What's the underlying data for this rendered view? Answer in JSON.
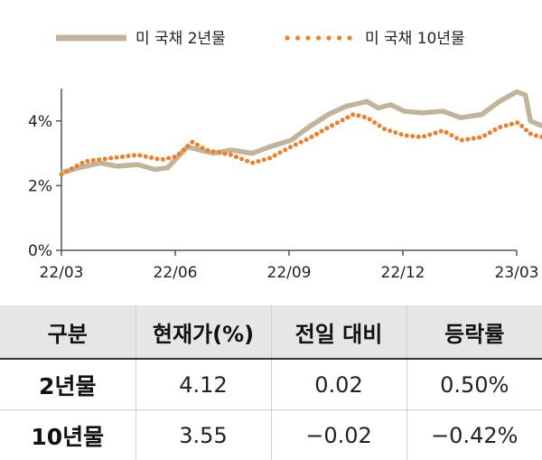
{
  "legend": {
    "series1": "미 국채 2년물",
    "series2": "미 국채 10년물"
  },
  "colors": {
    "series1": "#c2b49a",
    "series2": "#f07f2a"
  },
  "table": {
    "headers": [
      "구분",
      "현재가(%)",
      "전일 대비",
      "등락률"
    ],
    "rows": [
      [
        "2년물",
        "4.12",
        "0.02",
        "0.50%"
      ],
      [
        "10년물",
        "3.55",
        "−0.02",
        "−0.42%"
      ]
    ]
  },
  "chart_data": {
    "type": "line",
    "x_tick_labels": [
      "22/03",
      "22/06",
      "22/09",
      "22/12",
      "23/03"
    ],
    "y_tick_labels": [
      "0%",
      "2%",
      "4%"
    ],
    "y_ticks": [
      0,
      2,
      4
    ],
    "ylim": [
      0,
      5
    ],
    "x_range": [
      "2022-03",
      "2023-03"
    ],
    "grid": false,
    "legend_position": "top",
    "series": [
      {
        "name": "미 국채 2년물",
        "style": "solid-thick",
        "points": [
          [
            "2022-03-01",
            2.4
          ],
          [
            "2022-03-15",
            2.55
          ],
          [
            "2022-04-01",
            2.7
          ],
          [
            "2022-04-15",
            2.6
          ],
          [
            "2022-05-01",
            2.65
          ],
          [
            "2022-05-15",
            2.5
          ],
          [
            "2022-05-25",
            2.55
          ],
          [
            "2022-06-10",
            3.2
          ],
          [
            "2022-06-20",
            3.1
          ],
          [
            "2022-07-01",
            3.0
          ],
          [
            "2022-07-15",
            3.1
          ],
          [
            "2022-08-01",
            3.0
          ],
          [
            "2022-08-15",
            3.2
          ],
          [
            "2022-09-01",
            3.4
          ],
          [
            "2022-09-15",
            3.8
          ],
          [
            "2022-10-01",
            4.2
          ],
          [
            "2022-10-15",
            4.45
          ],
          [
            "2022-11-01",
            4.6
          ],
          [
            "2022-11-10",
            4.4
          ],
          [
            "2022-11-20",
            4.5
          ],
          [
            "2022-12-01",
            4.3
          ],
          [
            "2022-12-15",
            4.25
          ],
          [
            "2023-01-01",
            4.3
          ],
          [
            "2023-01-15",
            4.1
          ],
          [
            "2023-02-01",
            4.2
          ],
          [
            "2023-02-15",
            4.6
          ],
          [
            "2023-03-01",
            4.9
          ],
          [
            "2023-03-08",
            4.8
          ],
          [
            "2023-03-12",
            4.0
          ],
          [
            "2023-03-18",
            3.9
          ],
          [
            "2023-03-25",
            3.8
          ],
          [
            "2023-03-30",
            4.12
          ]
        ]
      },
      {
        "name": "미 국채 10년물",
        "style": "dotted",
        "points": [
          [
            "2022-03-01",
            2.35
          ],
          [
            "2022-03-20",
            2.75
          ],
          [
            "2022-04-10",
            2.85
          ],
          [
            "2022-05-01",
            2.95
          ],
          [
            "2022-05-20",
            2.8
          ],
          [
            "2022-06-01",
            2.9
          ],
          [
            "2022-06-14",
            3.35
          ],
          [
            "2022-06-25",
            3.1
          ],
          [
            "2022-07-15",
            2.95
          ],
          [
            "2022-08-01",
            2.7
          ],
          [
            "2022-08-15",
            2.85
          ],
          [
            "2022-09-01",
            3.2
          ],
          [
            "2022-09-15",
            3.45
          ],
          [
            "2022-10-01",
            3.8
          ],
          [
            "2022-10-21",
            4.2
          ],
          [
            "2022-11-01",
            4.1
          ],
          [
            "2022-11-15",
            3.75
          ],
          [
            "2022-12-01",
            3.55
          ],
          [
            "2022-12-15",
            3.5
          ],
          [
            "2023-01-01",
            3.7
          ],
          [
            "2023-01-15",
            3.4
          ],
          [
            "2023-02-01",
            3.5
          ],
          [
            "2023-02-15",
            3.8
          ],
          [
            "2023-03-02",
            3.95
          ],
          [
            "2023-03-12",
            3.6
          ],
          [
            "2023-03-20",
            3.5
          ],
          [
            "2023-03-30",
            3.55
          ]
        ]
      }
    ]
  }
}
